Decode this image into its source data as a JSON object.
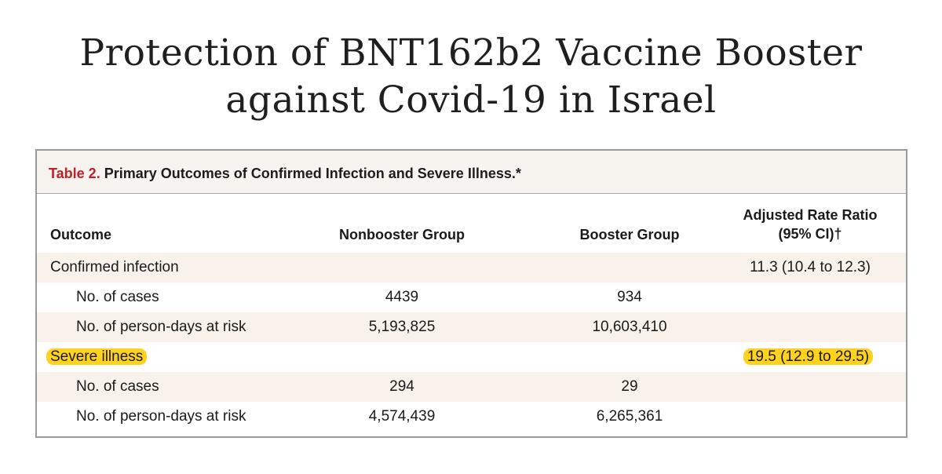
{
  "title": {
    "line1": "Protection of BNT162b2 Vaccine Booster",
    "line2": "against Covid-19 in Israel"
  },
  "table": {
    "caption_label": "Table 2.",
    "caption_text": " Primary Outcomes of Confirmed Infection and Severe Illness.*",
    "headers": {
      "outcome": "Outcome",
      "nonbooster": "Nonbooster Group",
      "booster": "Booster Group",
      "ratio_line1": "Adjusted Rate Ratio",
      "ratio_line2": "(95% CI)†"
    },
    "rows": [
      {
        "outcome": "Confirmed infection",
        "nonbooster": "",
        "booster": "",
        "ratio": "11.3 (10.4 to 12.3)"
      },
      {
        "outcome": "No. of cases",
        "nonbooster": "4439",
        "booster": "934",
        "ratio": ""
      },
      {
        "outcome": "No. of person-days at risk",
        "nonbooster": "5,193,825",
        "booster": "10,603,410",
        "ratio": ""
      },
      {
        "outcome": "Severe illness",
        "nonbooster": "",
        "booster": "",
        "ratio": "19.5 (12.9 to 29.5)"
      },
      {
        "outcome": "No. of cases",
        "nonbooster": "294",
        "booster": "29",
        "ratio": ""
      },
      {
        "outcome": "No. of person-days at risk",
        "nonbooster": "4,574,439",
        "booster": "6,265,361",
        "ratio": ""
      }
    ]
  },
  "colors": {
    "table_label": "#c0202a",
    "highlight": "#ffd21f",
    "shaded_row": "#f8f2ea"
  }
}
